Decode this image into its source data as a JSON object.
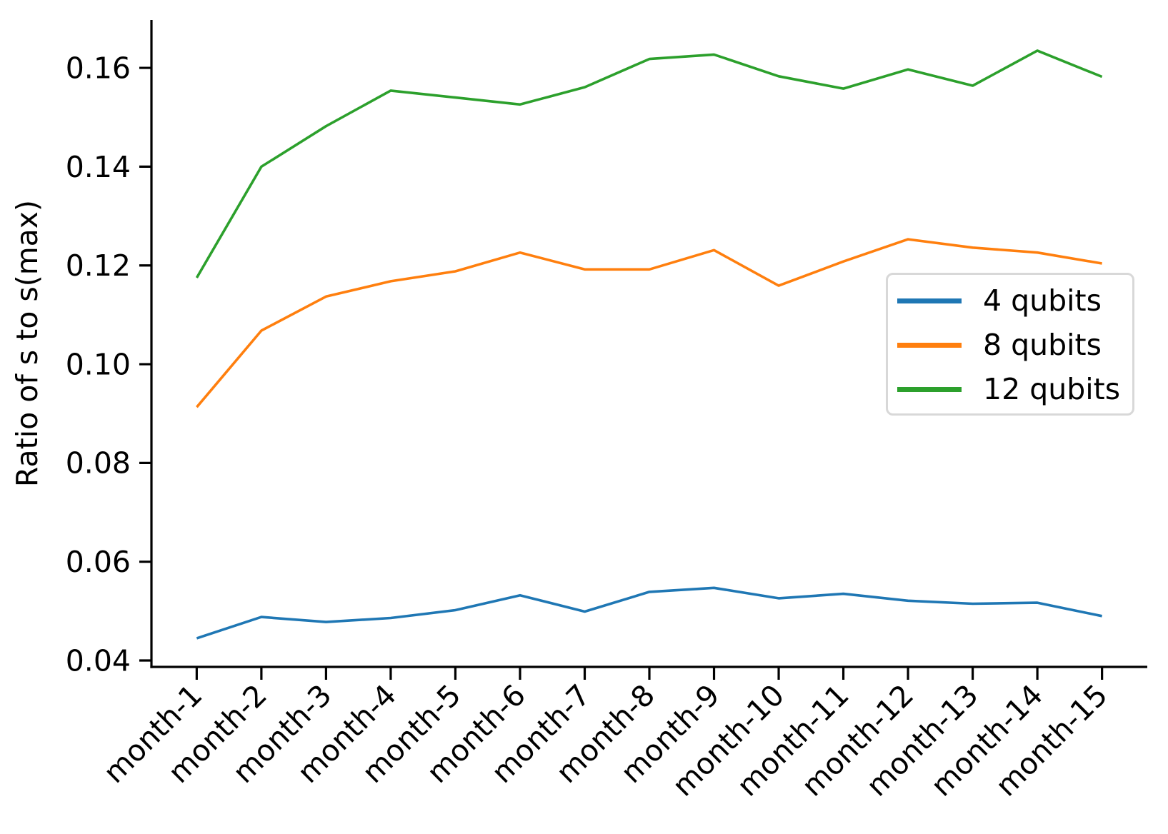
{
  "chart_data": {
    "type": "line",
    "title": "",
    "xlabel": "",
    "ylabel": "Ratio of s to s(max)",
    "categories": [
      "month-1",
      "month-2",
      "month-3",
      "month-4",
      "month-5",
      "month-6",
      "month-7",
      "month-8",
      "month-9",
      "month-10",
      "month-11",
      "month-12",
      "month-13",
      "month-14",
      "month-15"
    ],
    "series": [
      {
        "name": "4 qubits",
        "color": "#1f77b4",
        "values": [
          0.0445,
          0.0488,
          0.0478,
          0.0486,
          0.0502,
          0.0532,
          0.0499,
          0.0539,
          0.0547,
          0.0526,
          0.0535,
          0.0521,
          0.0515,
          0.0517,
          0.049
        ]
      },
      {
        "name": "8 qubits",
        "color": "#ff7f0e",
        "values": [
          0.0913,
          0.1068,
          0.1137,
          0.1168,
          0.1188,
          0.1226,
          0.1192,
          0.1192,
          0.1231,
          0.1159,
          0.1208,
          0.1253,
          0.1236,
          0.1226,
          0.1204
        ]
      },
      {
        "name": "12 qubits",
        "color": "#2ca02c",
        "values": [
          0.1175,
          0.14,
          0.1482,
          0.1554,
          0.154,
          0.1526,
          0.1561,
          0.1618,
          0.1627,
          0.1583,
          0.1558,
          0.1597,
          0.1564,
          0.1635,
          0.1582
        ]
      }
    ],
    "y_ticks": [
      0.04,
      0.06,
      0.08,
      0.1,
      0.12,
      0.14,
      0.16
    ],
    "y_tick_decimals": 2,
    "ylim": [
      0.0387,
      0.1697
    ],
    "xlim": [
      0.3,
      15.7
    ],
    "x_tick_rotation_deg": 45,
    "grid": false,
    "legend_position": "center right",
    "axis_color": "#000000"
  }
}
